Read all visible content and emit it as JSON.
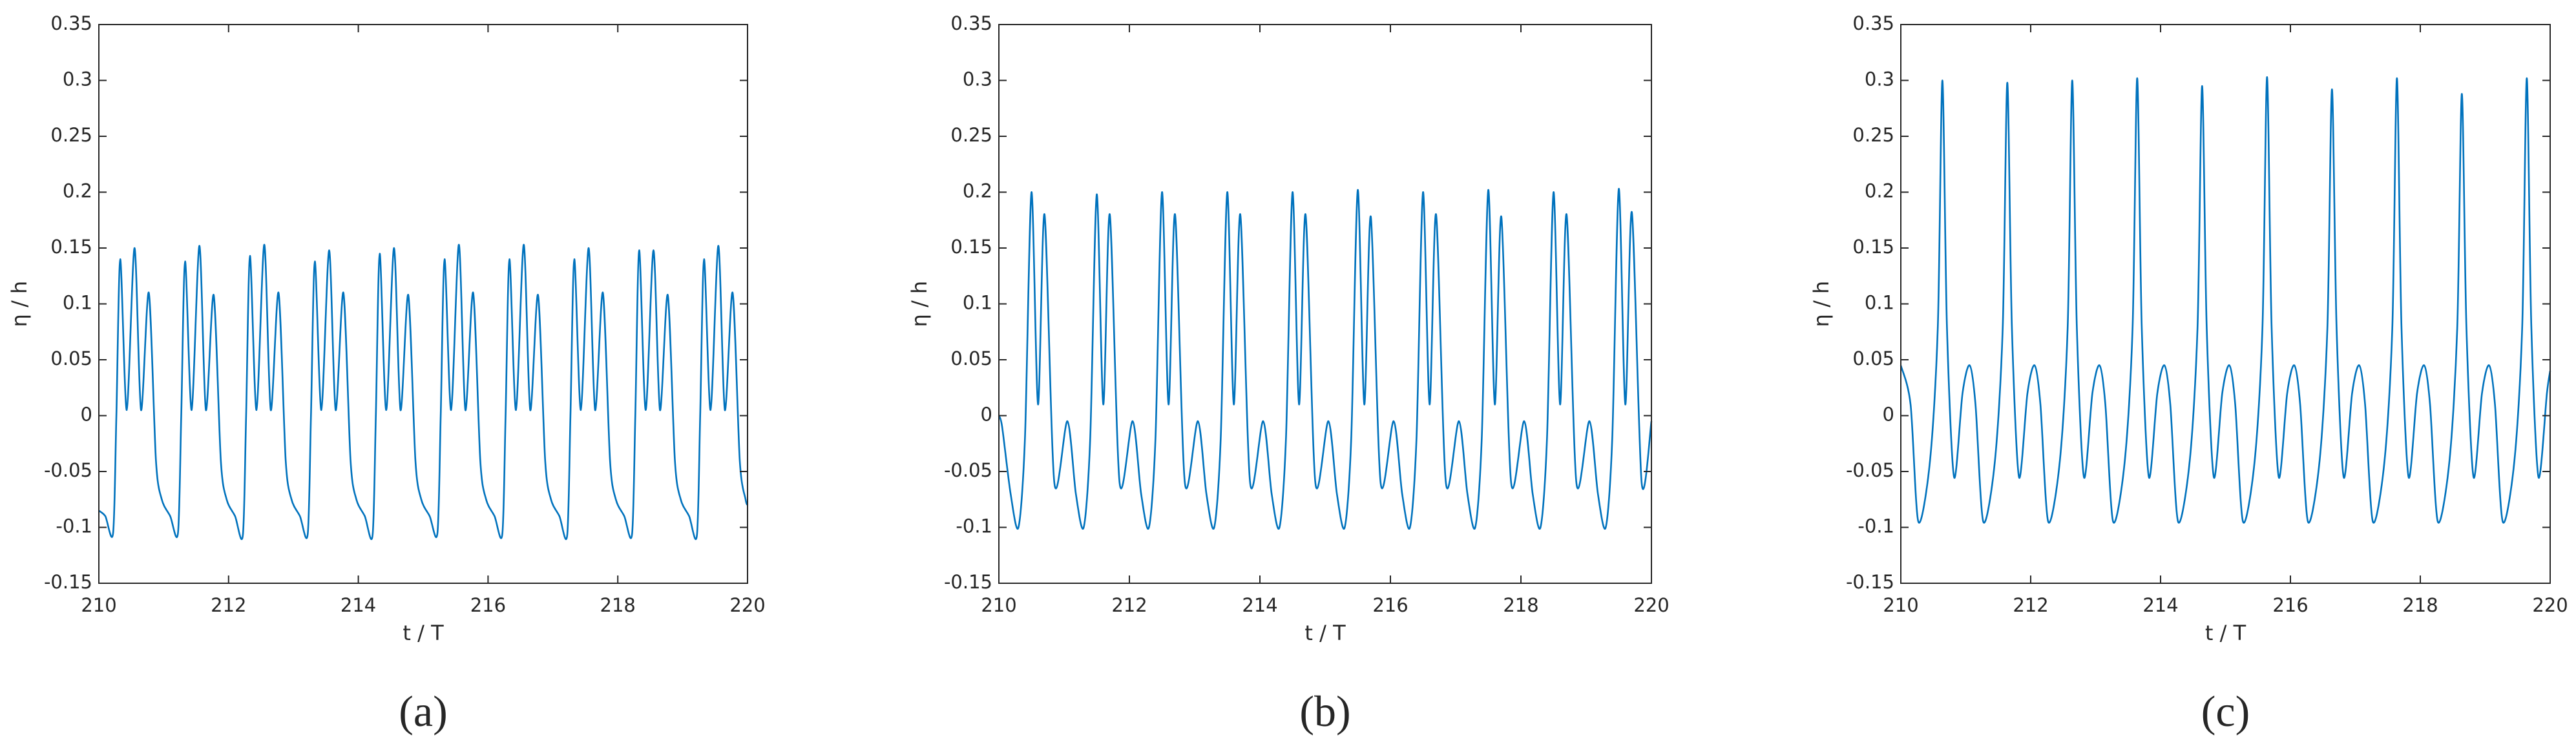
{
  "chart_data": [
    {
      "type": "line",
      "panel_label": "(a)",
      "xlabel": "t / T",
      "ylabel": "η / h",
      "color": "#0072bd",
      "xlim": [
        210,
        220
      ],
      "xticks": [
        210,
        212,
        214,
        216,
        218,
        220
      ],
      "ylim": [
        -0.15,
        0.35
      ],
      "yticks": [
        -0.15,
        -0.1,
        -0.05,
        0,
        0.05,
        0.1,
        0.15,
        0.2,
        0.25,
        0.3,
        0.35
      ],
      "x": [
        210,
        210.1,
        210.22,
        210.27,
        210.33,
        210.43,
        210.55,
        210.65,
        210.77,
        210.88,
        210.97,
        211.1,
        211.22,
        211.27,
        211.33,
        211.43,
        211.55,
        211.65,
        211.77,
        211.88,
        211.97,
        212.1,
        212.22,
        212.27,
        212.33,
        212.43,
        212.55,
        212.65,
        212.77,
        212.88,
        212.97,
        213.1,
        213.22,
        213.27,
        213.33,
        213.43,
        213.55,
        213.65,
        213.77,
        213.88,
        213.97,
        214.1,
        214.22,
        214.27,
        214.33,
        214.43,
        214.55,
        214.65,
        214.77,
        214.88,
        214.97,
        215.1,
        215.22,
        215.27,
        215.33,
        215.43,
        215.55,
        215.65,
        215.77,
        215.88,
        215.97,
        216.1,
        216.22,
        216.27,
        216.33,
        216.43,
        216.55,
        216.65,
        216.77,
        216.88,
        216.97,
        217.1,
        217.22,
        217.27,
        217.33,
        217.43,
        217.55,
        217.65,
        217.77,
        217.88,
        217.97,
        218.1,
        218.22,
        218.27,
        218.33,
        218.43,
        218.55,
        218.65,
        218.77,
        218.88,
        218.97,
        219.1,
        219.22,
        219.27,
        219.33,
        219.43,
        219.55,
        219.65,
        219.77,
        219.88,
        219.97,
        220
      ],
      "values": [
        -0.085,
        -0.09,
        -0.105,
        0,
        0.14,
        0.005,
        0.15,
        0.005,
        0.11,
        -0.04,
        -0.075,
        -0.09,
        -0.105,
        0,
        0.138,
        0.005,
        0.152,
        0.005,
        0.108,
        -0.04,
        -0.075,
        -0.09,
        -0.107,
        0,
        0.143,
        0.005,
        0.153,
        0.005,
        0.11,
        -0.04,
        -0.075,
        -0.09,
        -0.106,
        0,
        0.138,
        0.005,
        0.148,
        0.005,
        0.11,
        -0.04,
        -0.075,
        -0.09,
        -0.107,
        0,
        0.145,
        0.005,
        0.15,
        0.005,
        0.108,
        -0.04,
        -0.075,
        -0.09,
        -0.105,
        0,
        0.14,
        0.005,
        0.153,
        0.005,
        0.11,
        -0.04,
        -0.075,
        -0.09,
        -0.106,
        0,
        0.14,
        0.005,
        0.153,
        0.005,
        0.108,
        -0.04,
        -0.075,
        -0.09,
        -0.107,
        0,
        0.14,
        0.005,
        0.15,
        0.005,
        0.11,
        -0.04,
        -0.075,
        -0.09,
        -0.106,
        0,
        0.148,
        0.005,
        0.148,
        0.005,
        0.108,
        -0.04,
        -0.075,
        -0.09,
        -0.107,
        0,
        0.14,
        0.005,
        0.152,
        0.005,
        0.11,
        -0.04,
        -0.075,
        -0.08
      ]
    },
    {
      "type": "line",
      "panel_label": "(b)",
      "xlabel": "t / T",
      "ylabel": "η / h",
      "color": "#0072bd",
      "xlim": [
        210,
        220
      ],
      "xticks": [
        210,
        212,
        214,
        216,
        218,
        220
      ],
      "ylim": [
        -0.15,
        0.35
      ],
      "yticks": [
        -0.15,
        -0.1,
        -0.05,
        0,
        0.05,
        0.1,
        0.15,
        0.2,
        0.25,
        0.3,
        0.35
      ],
      "x": [
        210,
        210.05,
        210.18,
        210.3,
        210.4,
        210.5,
        210.6,
        210.7,
        210.85,
        211.05,
        211.18,
        211.3,
        211.4,
        211.5,
        211.6,
        211.7,
        211.85,
        212.05,
        212.18,
        212.3,
        212.4,
        212.5,
        212.6,
        212.7,
        212.85,
        213.05,
        213.18,
        213.3,
        213.4,
        213.5,
        213.6,
        213.7,
        213.85,
        214.05,
        214.18,
        214.3,
        214.4,
        214.5,
        214.6,
        214.7,
        214.85,
        215.05,
        215.18,
        215.3,
        215.4,
        215.5,
        215.6,
        215.7,
        215.85,
        216.05,
        216.18,
        216.3,
        216.4,
        216.5,
        216.6,
        216.7,
        216.85,
        217.05,
        217.18,
        217.3,
        217.4,
        217.5,
        217.6,
        217.7,
        217.85,
        218.05,
        218.18,
        218.3,
        218.4,
        218.5,
        218.6,
        218.7,
        218.85,
        219.05,
        219.18,
        219.3,
        219.4,
        219.5,
        219.6,
        219.7,
        219.85,
        220
      ],
      "values": [
        0,
        -0.01,
        -0.07,
        -0.1,
        -0.02,
        0.2,
        0.01,
        0.18,
        -0.06,
        -0.005,
        -0.07,
        -0.1,
        -0.02,
        0.198,
        0.01,
        0.18,
        -0.06,
        -0.005,
        -0.07,
        -0.1,
        -0.02,
        0.2,
        0.01,
        0.18,
        -0.06,
        -0.005,
        -0.07,
        -0.1,
        -0.02,
        0.2,
        0.01,
        0.18,
        -0.06,
        -0.005,
        -0.07,
        -0.1,
        -0.02,
        0.2,
        0.01,
        0.18,
        -0.06,
        -0.005,
        -0.07,
        -0.1,
        -0.02,
        0.202,
        0.01,
        0.178,
        -0.06,
        -0.005,
        -0.07,
        -0.1,
        -0.02,
        0.2,
        0.01,
        0.18,
        -0.06,
        -0.005,
        -0.07,
        -0.1,
        -0.02,
        0.202,
        0.01,
        0.178,
        -0.06,
        -0.005,
        -0.07,
        -0.1,
        -0.02,
        0.2,
        0.01,
        0.18,
        -0.06,
        -0.005,
        -0.07,
        -0.1,
        -0.02,
        0.203,
        0.01,
        0.182,
        -0.06,
        -0.005
      ]
    },
    {
      "type": "line",
      "panel_label": "(c)",
      "xlabel": "t / T",
      "ylabel": "η / h",
      "color": "#0072bd",
      "xlim": [
        210,
        220
      ],
      "xticks": [
        210,
        212,
        214,
        216,
        218,
        220
      ],
      "ylim": [
        -0.15,
        0.35
      ],
      "yticks": [
        -0.15,
        -0.1,
        -0.05,
        0,
        0.05,
        0.1,
        0.15,
        0.2,
        0.25,
        0.3,
        0.35
      ],
      "x": [
        210,
        210.15,
        210.27,
        210.45,
        210.57,
        210.64,
        210.71,
        210.82,
        210.95,
        211.06,
        211.15,
        211.27,
        211.45,
        211.57,
        211.64,
        211.71,
        211.82,
        211.95,
        212.06,
        212.15,
        212.27,
        212.45,
        212.57,
        212.64,
        212.71,
        212.82,
        212.95,
        213.06,
        213.15,
        213.27,
        213.45,
        213.57,
        213.64,
        213.71,
        213.82,
        213.95,
        214.06,
        214.15,
        214.27,
        214.45,
        214.57,
        214.64,
        214.71,
        214.82,
        214.95,
        215.06,
        215.15,
        215.27,
        215.45,
        215.57,
        215.64,
        215.71,
        215.82,
        215.95,
        216.06,
        216.15,
        216.27,
        216.45,
        216.57,
        216.64,
        216.71,
        216.82,
        216.95,
        217.06,
        217.15,
        217.27,
        217.45,
        217.57,
        217.64,
        217.71,
        217.82,
        217.95,
        218.06,
        218.15,
        218.27,
        218.45,
        218.57,
        218.64,
        218.71,
        218.82,
        218.95,
        219.06,
        219.15,
        219.27,
        219.45,
        219.57,
        219.64,
        219.71,
        219.82,
        219.95,
        220
      ],
      "values": [
        0.045,
        0.01,
        -0.095,
        -0.04,
        0.08,
        0.3,
        0.08,
        -0.055,
        0.02,
        0.045,
        0.01,
        -0.095,
        -0.04,
        0.08,
        0.298,
        0.08,
        -0.055,
        0.02,
        0.045,
        0.01,
        -0.095,
        -0.04,
        0.08,
        0.3,
        0.08,
        -0.055,
        0.02,
        0.045,
        0.01,
        -0.095,
        -0.04,
        0.08,
        0.302,
        0.08,
        -0.055,
        0.02,
        0.045,
        0.01,
        -0.095,
        -0.04,
        0.08,
        0.295,
        0.08,
        -0.055,
        0.02,
        0.045,
        0.01,
        -0.095,
        -0.04,
        0.08,
        0.303,
        0.08,
        -0.055,
        0.02,
        0.045,
        0.01,
        -0.095,
        -0.04,
        0.08,
        0.292,
        0.08,
        -0.055,
        0.02,
        0.045,
        0.01,
        -0.095,
        -0.04,
        0.08,
        0.302,
        0.08,
        -0.055,
        0.02,
        0.045,
        0.01,
        -0.095,
        -0.04,
        0.08,
        0.288,
        0.08,
        -0.055,
        0.02,
        0.045,
        0.01,
        -0.095,
        -0.04,
        0.08,
        0.302,
        0.08,
        -0.055,
        0.02,
        0.04
      ]
    }
  ]
}
